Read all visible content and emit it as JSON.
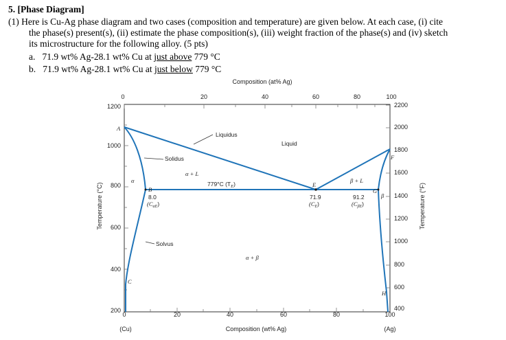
{
  "question": {
    "heading": "5.  [Phase Diagram]",
    "intro_line1": "(1)  Here is Cu-Ag phase diagram and two cases (composition and temperature) are given below. At each case, (i) cite",
    "intro_line2": "the phase(s) present(s), (ii) estimate the phase composition(s), (iii) weight fraction of the phase(s) and (iv) sketch",
    "intro_line3": "its microstructure for the following alloy. (5 pts)",
    "case_a": {
      "label": "a.",
      "text": "71.9 wt% Ag-28.1 wt% Cu at",
      "cond": "just above",
      "temp": "779 °C"
    },
    "case_b": {
      "label": "b.",
      "text": "71.9 wt% Ag-28.1 wt% Cu at",
      "cond": "just below",
      "temp": "779 °C"
    }
  },
  "diagram": {
    "top_axis_title": "Composition (at% Ag)",
    "top_ticks": [
      "0",
      "20",
      "40",
      "60",
      "80",
      "100"
    ],
    "bottom_ticks": [
      "0",
      "20",
      "40",
      "60",
      "80",
      "100"
    ],
    "bottom_axis_title": "Composition (wt% Ag)",
    "left_ticks": [
      "1200",
      "1000",
      "800",
      "600",
      "400",
      "200"
    ],
    "left_axis_title": "Temperature (°C)",
    "right_ticks": [
      "2200",
      "2000",
      "1800",
      "1600",
      "1400",
      "1200",
      "1000",
      "800",
      "600",
      "400"
    ],
    "right_axis_title": "Temperature (°F)",
    "bottom_left_label": "(Cu)",
    "bottom_right_label": "(Ag)",
    "labels": {
      "A": "A",
      "B": "B",
      "C": "C",
      "E": "E",
      "F": "F",
      "G": "G",
      "H": "H",
      "liquidus": "Liquidus",
      "liquid": "Liquid",
      "solidus": "Solidus",
      "solvus": "Solvus",
      "alpha": "α",
      "beta": "β",
      "alpha_l": "α + L",
      "beta_l": "β + L",
      "alpha_beta": "α + β",
      "eutectic": "779°C (T",
      "eutectic_sub": "E",
      "eutectic_close": ")",
      "ce_val": "71.9",
      "ce_lab": "(C",
      "ce_sub": "E",
      "ce_close": ")",
      "ca_val": "8.0",
      "ca_lab": "(C",
      "ca_sub": "αE",
      "ca_close": ")",
      "cb_val": "91.2",
      "cb_lab": "(C",
      "cb_sub": "βE",
      "cb_close": ")"
    },
    "colors": {
      "phase_lines": "#1f74b8",
      "frame": "#1a1a1a",
      "grid": "#7a7a7a"
    }
  }
}
